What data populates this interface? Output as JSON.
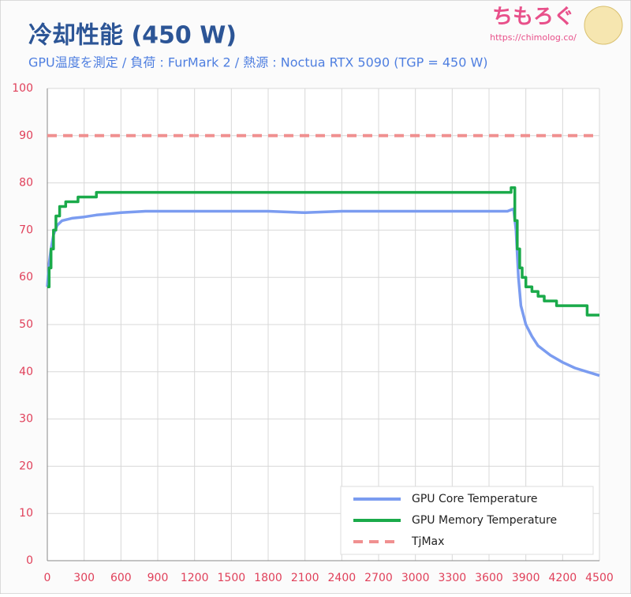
{
  "chart_data": {
    "type": "line",
    "title": "冷却性能 (450 W)",
    "subtitle": "GPU温度を測定 / 負荷 : FurMark 2 / 熱源 : Noctua RTX 5090 (TGP = 450 W)",
    "watermark": {
      "text": "ちもろぐ",
      "url": "https://chimolog.co/"
    },
    "xlim": [
      0,
      4500
    ],
    "xticks": [
      0,
      300,
      600,
      900,
      1200,
      1500,
      1800,
      2100,
      2400,
      2700,
      3000,
      3300,
      3600,
      3900,
      4200,
      4500
    ],
    "ylim": [
      0,
      100
    ],
    "yticks": [
      0,
      10,
      20,
      30,
      40,
      50,
      60,
      70,
      80,
      90,
      100
    ],
    "grid": true,
    "legend": "lower right",
    "series": [
      {
        "name": "GPU Core Temperature",
        "color": "#7b9cf0",
        "dashed": false,
        "x": [
          0,
          15,
          30,
          50,
          80,
          120,
          200,
          300,
          400,
          600,
          800,
          1200,
          1800,
          2100,
          2400,
          3000,
          3600,
          3750,
          3800,
          3820,
          3840,
          3860,
          3900,
          3950,
          4000,
          4100,
          4200,
          4300,
          4400,
          4500
        ],
        "values": [
          58,
          63,
          66,
          69,
          71,
          72,
          72.5,
          72.8,
          73.2,
          73.7,
          74,
          74,
          74,
          73.7,
          74,
          74,
          74,
          74,
          74.5,
          70,
          60,
          54,
          50,
          47.5,
          45.5,
          43.5,
          42,
          40.8,
          40,
          39.2
        ]
      },
      {
        "name": "GPU Memory Temperature",
        "color": "#1aaa4a",
        "dashed": false,
        "x": [
          0,
          15,
          15,
          30,
          30,
          50,
          50,
          70,
          70,
          100,
          100,
          150,
          150,
          250,
          250,
          400,
          400,
          3780,
          3780,
          3810,
          3810,
          3830,
          3830,
          3850,
          3850,
          3870,
          3870,
          3900,
          3900,
          3950,
          3950,
          4000,
          4000,
          4050,
          4050,
          4150,
          4150,
          4400,
          4400,
          4500
        ],
        "values": [
          58,
          58,
          62,
          62,
          66,
          66,
          70,
          70,
          73,
          73,
          75,
          75,
          76,
          76,
          77,
          77,
          78,
          78,
          79,
          79,
          72,
          72,
          66,
          66,
          62,
          62,
          60,
          60,
          58,
          58,
          57,
          57,
          56,
          56,
          55,
          55,
          54,
          54,
          52,
          52
        ]
      },
      {
        "name": "TjMax",
        "color": "#f09090",
        "dashed": true,
        "x": [
          0,
          4500
        ],
        "values": [
          90,
          90
        ]
      }
    ]
  }
}
